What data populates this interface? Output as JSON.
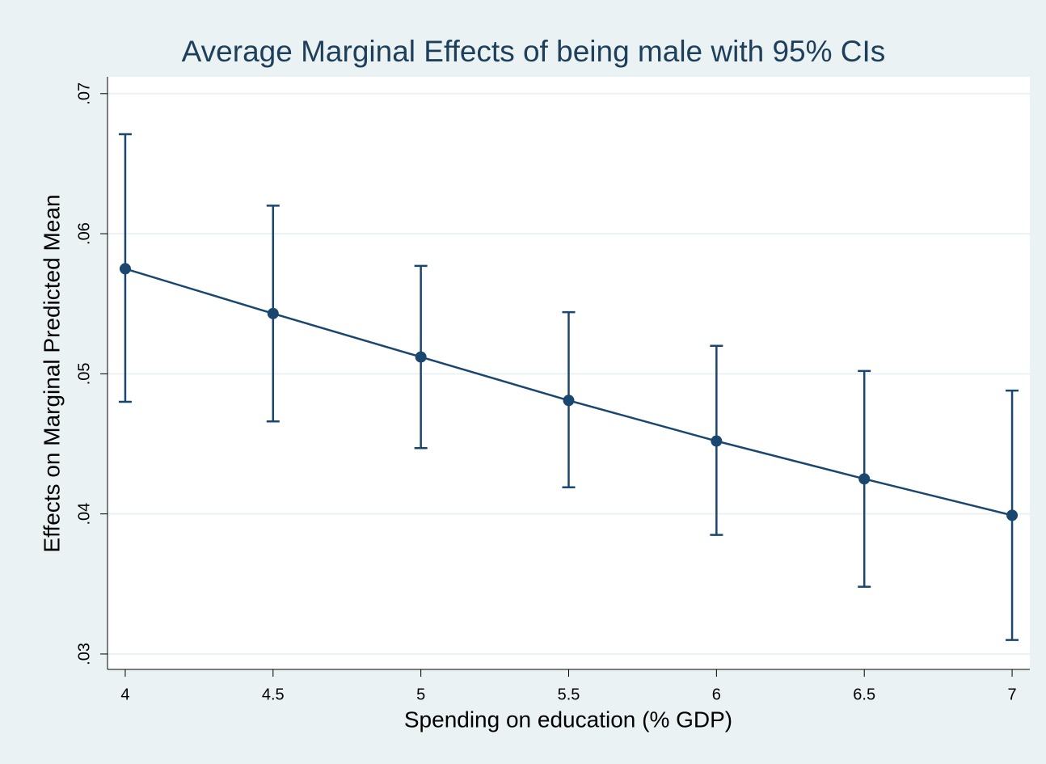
{
  "chart_data": {
    "type": "line",
    "title": "Average Marginal Effects of being male with 95% CIs",
    "x_label": "Spending on education (% GDP)",
    "y_label": "Effects on Marginal Predicted Mean",
    "x": [
      4,
      4.5,
      5,
      5.5,
      6,
      6.5,
      7
    ],
    "series": [
      {
        "color": "#1a476f",
        "values": [
          0.0575,
          0.0543,
          0.0512,
          0.0481,
          0.0452,
          0.0425,
          0.0399
        ],
        "ci_lower": [
          0.048,
          0.0466,
          0.0447,
          0.0419,
          0.0385,
          0.0348,
          0.031
        ],
        "ci_upper": [
          0.0671,
          0.062,
          0.0577,
          0.0544,
          0.052,
          0.0502,
          0.0488
        ]
      }
    ],
    "xlim": [
      3.94,
      7.06
    ],
    "ylim": [
      0.0289,
      0.0712
    ],
    "xticks": [
      4,
      4.5,
      5,
      5.5,
      6,
      6.5,
      7
    ],
    "yticks": [
      {
        "value": 0.03,
        "label": ".03"
      },
      {
        "value": 0.04,
        "label": ".04"
      },
      {
        "value": 0.05,
        "label": ".05"
      },
      {
        "value": 0.06,
        "label": ".06"
      },
      {
        "value": 0.07,
        "label": ".07"
      }
    ],
    "grid": true
  }
}
